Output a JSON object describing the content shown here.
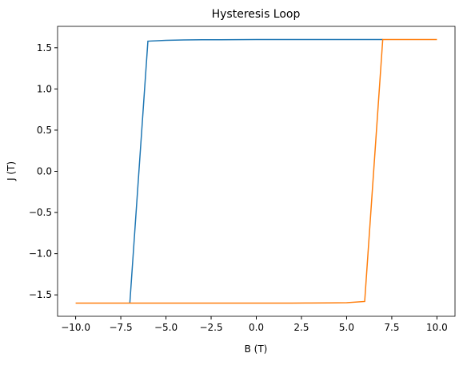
{
  "chart_data": {
    "type": "line",
    "title": "Hysteresis Loop",
    "x_label": "B (T)",
    "y_label": "J (T)",
    "series": [
      {
        "color": "#1f77b4",
        "x": [
          -7,
          -6,
          -5,
          -4,
          -3,
          -2,
          -1,
          0,
          1,
          2,
          3,
          4,
          5,
          6,
          7
        ],
        "values": [
          -1.6,
          1.58,
          1.59,
          1.595,
          1.597,
          1.598,
          1.599,
          1.6,
          1.6,
          1.6,
          1.6,
          1.6,
          1.6,
          1.6,
          1.6
        ]
      },
      {
        "color": "#ff7f0e",
        "x": [
          -10,
          -9,
          -8,
          -7,
          -6,
          -5,
          -4,
          -3,
          -2,
          -1,
          0,
          1,
          2,
          3,
          4,
          5,
          6,
          7,
          8,
          9,
          10
        ],
        "values": [
          -1.6,
          -1.6,
          -1.6,
          -1.6,
          -1.6,
          -1.6,
          -1.6,
          -1.6,
          -1.6,
          -1.6,
          -1.6,
          -1.6,
          -1.6,
          -1.599,
          -1.598,
          -1.595,
          -1.58,
          1.6,
          1.6,
          1.6,
          1.6
        ]
      }
    ],
    "xlim": [
      -11,
      11
    ],
    "xticks": [
      {
        "value": -10,
        "label": "−10.0"
      },
      {
        "value": -7.5,
        "label": "−7.5"
      },
      {
        "value": -5,
        "label": "−5.0"
      },
      {
        "value": -2.5,
        "label": "−2.5"
      },
      {
        "value": 0,
        "label": "0.0"
      },
      2.5,
      {
        "value": 5,
        "label": "5.0"
      },
      7.5,
      {
        "value": 10,
        "label": "10.0"
      }
    ],
    "ylim": [
      -1.76,
      1.76
    ],
    "yticks": [
      {
        "value": -1.5,
        "label": "−1.5"
      },
      {
        "value": -1,
        "label": "−1.0"
      },
      {
        "value": -0.5,
        "label": "−0.5"
      },
      {
        "value": 0,
        "label": "0.0"
      },
      0.5,
      {
        "value": 1,
        "label": "1.0"
      },
      1.5
    ],
    "grid": false
  }
}
